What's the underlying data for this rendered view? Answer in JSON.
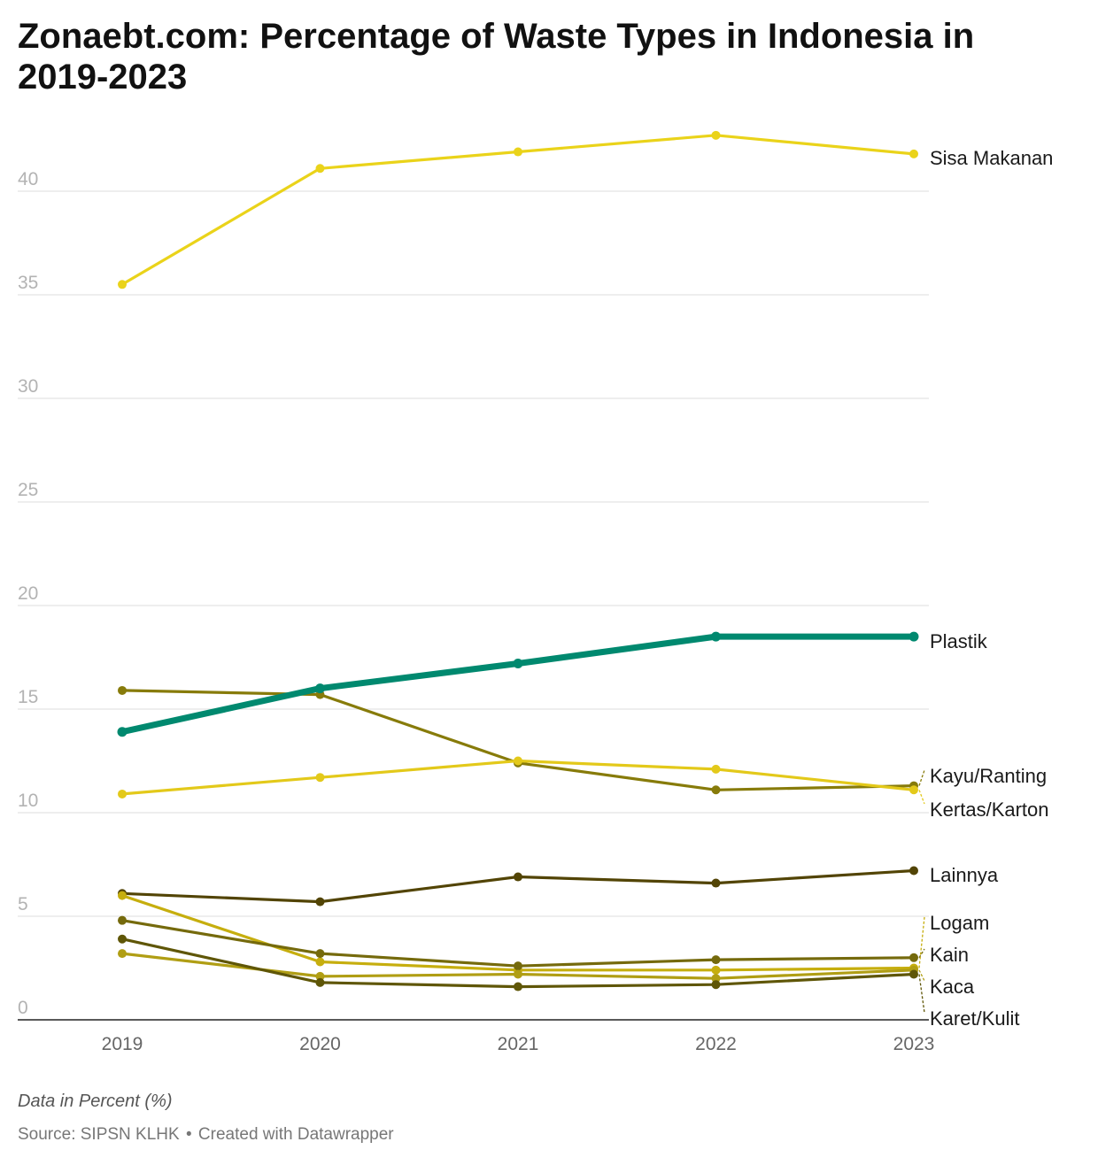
{
  "title": "Zonaebt.com: Percentage of Waste Types in Indonesia in 2019-2023",
  "notes": "Data in Percent (%)",
  "source": "Source: SIPSN KLHK",
  "separator": "•",
  "credit": "Created with Datawrapper",
  "chart_data": {
    "type": "line",
    "title": "Zonaebt.com: Percentage of Waste Types in Indonesia in 2019-2023",
    "xlabel": "",
    "ylabel": "",
    "x": [
      "2019",
      "2020",
      "2021",
      "2022",
      "2023"
    ],
    "yticks": [
      0,
      5,
      10,
      15,
      20,
      25,
      30,
      35,
      40
    ],
    "ylim": [
      0,
      43
    ],
    "grid": true,
    "legend": "direct labels at line ends",
    "series": [
      {
        "name": "Sisa Makanan",
        "values": [
          35.5,
          41.1,
          41.9,
          42.7,
          41.8
        ],
        "color": "#ead31a",
        "highlight": false
      },
      {
        "name": "Plastik",
        "values": [
          13.9,
          16.0,
          17.2,
          18.5,
          18.5
        ],
        "color": "#00896f",
        "highlight": true
      },
      {
        "name": "Kayu/Ranting",
        "values": [
          15.9,
          15.7,
          12.4,
          11.1,
          11.3
        ],
        "color": "#877b0a",
        "highlight": false
      },
      {
        "name": "Kertas/Karton",
        "values": [
          10.9,
          11.7,
          12.5,
          12.1,
          11.1
        ],
        "color": "#e3c91a",
        "highlight": false
      },
      {
        "name": "Lainnya",
        "values": [
          6.1,
          5.7,
          6.9,
          6.6,
          7.2
        ],
        "color": "#524405",
        "highlight": false
      },
      {
        "name": "Logam",
        "values": [
          6.0,
          2.8,
          2.4,
          2.4,
          2.5
        ],
        "color": "#c6ae0e",
        "highlight": false
      },
      {
        "name": "Kain",
        "values": [
          4.8,
          3.2,
          2.6,
          2.9,
          3.0
        ],
        "color": "#756a0c",
        "highlight": false
      },
      {
        "name": "Kaca",
        "values": [
          3.2,
          2.1,
          2.2,
          2.0,
          2.4
        ],
        "color": "#b09e14",
        "highlight": false
      },
      {
        "name": "Karet/Kulit",
        "values": [
          3.9,
          1.8,
          1.6,
          1.7,
          2.2
        ],
        "color": "#5f5607",
        "highlight": false
      }
    ]
  }
}
